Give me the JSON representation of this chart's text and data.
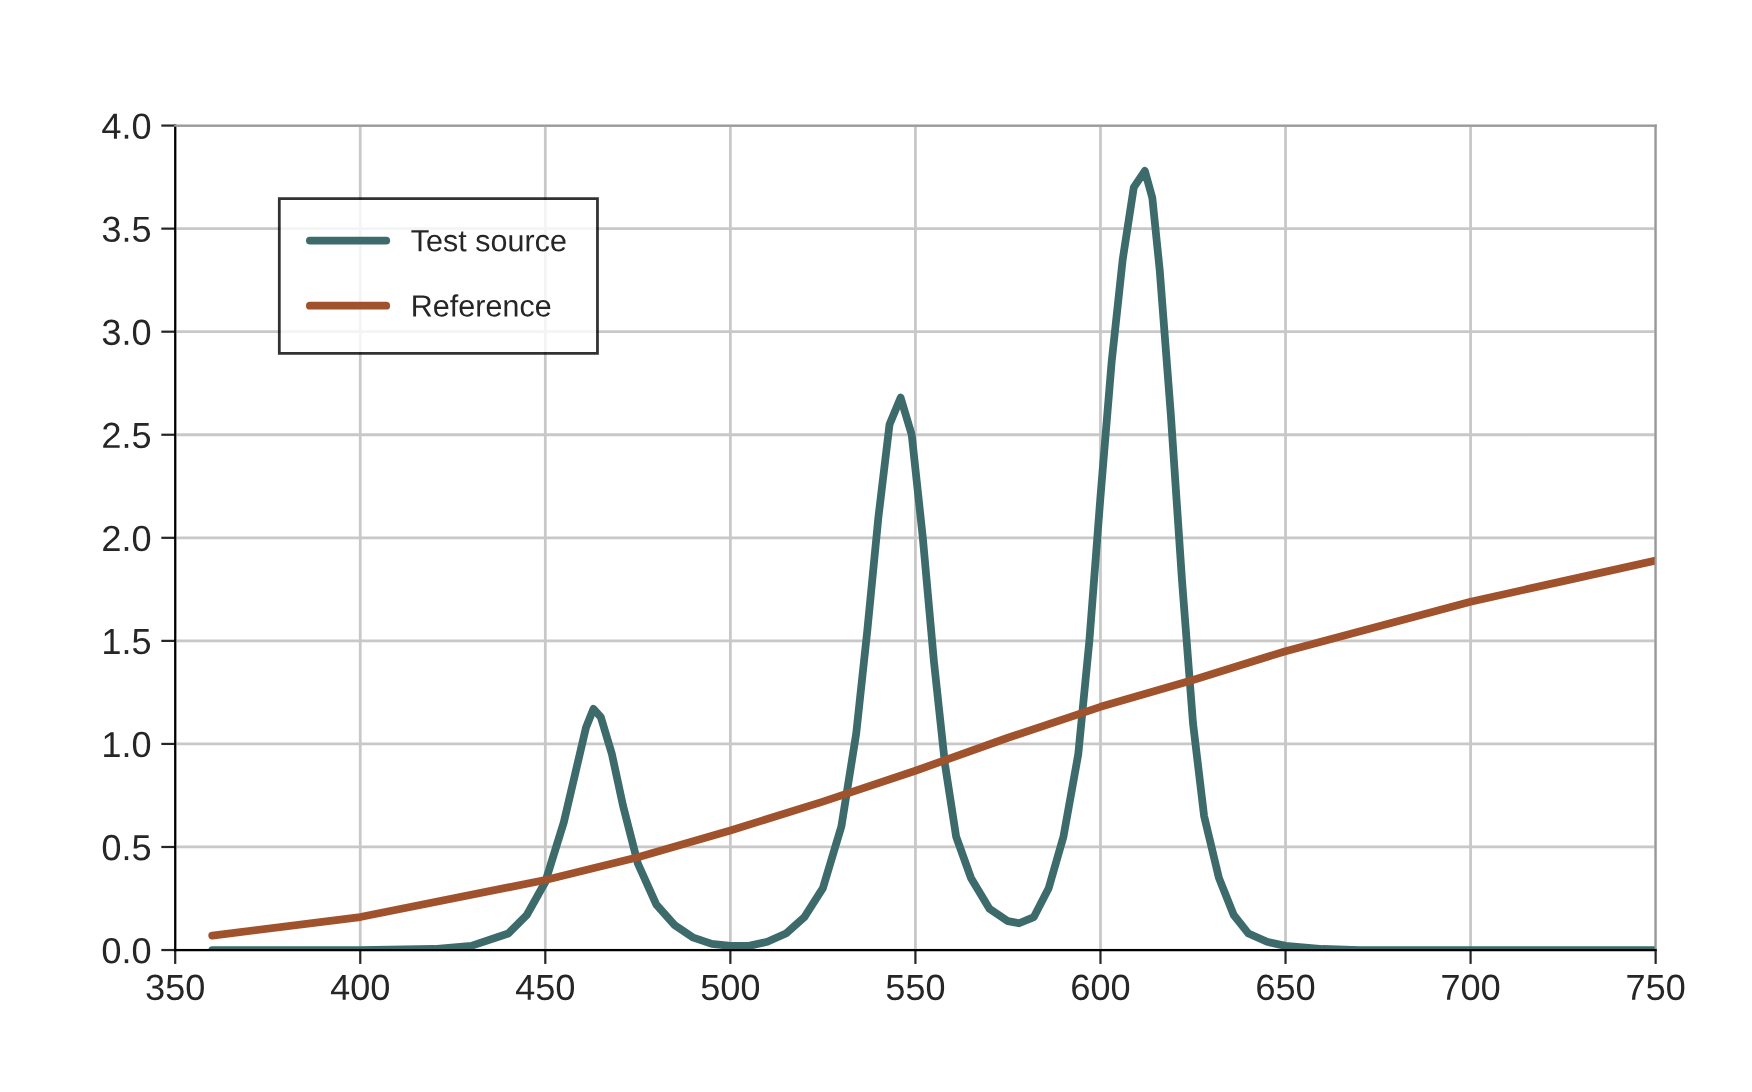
{
  "chart_data": {
    "type": "line",
    "xlim": [
      350,
      750
    ],
    "xticks": [
      350,
      400,
      450,
      500,
      550,
      600,
      650,
      700,
      750
    ],
    "ylim": [
      0,
      4.0
    ],
    "yticks": [
      {
        "value": 0,
        "label": "0.0"
      },
      {
        "value": 0.5,
        "label": "0.5"
      },
      {
        "value": 1.0,
        "label": "1.0"
      },
      {
        "value": 1.5,
        "label": "1.5"
      },
      {
        "value": 2.0,
        "label": "2.0"
      },
      {
        "value": 2.5,
        "label": "2.5"
      },
      {
        "value": 3.0,
        "label": "3.0"
      },
      {
        "value": 3.5,
        "label": "3.5"
      },
      {
        "value": 4.0,
        "label": "4.0"
      }
    ],
    "grid": true,
    "legend": "top left",
    "line_style": "solid",
    "series": [
      {
        "name": "Test source",
        "color": "#3d6b6b",
        "x": [
          360,
          400,
          420,
          430,
          440,
          445,
          450,
          455,
          458,
          461,
          463,
          465,
          468,
          471,
          475,
          480,
          485,
          490,
          495,
          500,
          505,
          510,
          515,
          520,
          525,
          530,
          534,
          537,
          540,
          543,
          546,
          549,
          552,
          555,
          558,
          561,
          565,
          570,
          575,
          578,
          582,
          586,
          590,
          594,
          597,
          600,
          603,
          606,
          609,
          612,
          614,
          616,
          619,
          622,
          625,
          628,
          632,
          636,
          640,
          645,
          650,
          660,
          670,
          750
        ],
        "values": [
          0,
          0,
          0.005,
          0.02,
          0.08,
          0.17,
          0.33,
          0.62,
          0.85,
          1.08,
          1.17,
          1.13,
          0.95,
          0.7,
          0.42,
          0.22,
          0.12,
          0.06,
          0.03,
          0.02,
          0.02,
          0.04,
          0.08,
          0.16,
          0.3,
          0.6,
          1.05,
          1.55,
          2.1,
          2.55,
          2.68,
          2.5,
          2.0,
          1.4,
          0.9,
          0.55,
          0.35,
          0.2,
          0.14,
          0.13,
          0.16,
          0.3,
          0.55,
          0.95,
          1.5,
          2.2,
          2.85,
          3.35,
          3.7,
          3.78,
          3.65,
          3.3,
          2.6,
          1.8,
          1.1,
          0.65,
          0.35,
          0.17,
          0.08,
          0.04,
          0.02,
          0.005,
          0,
          0
        ]
      },
      {
        "name": "Reference",
        "color": "#a0522d",
        "x": [
          360,
          400,
          450,
          475,
          500,
          525,
          550,
          575,
          600,
          625,
          650,
          675,
          700,
          725,
          750
        ],
        "values": [
          0.07,
          0.16,
          0.34,
          0.45,
          0.58,
          0.72,
          0.87,
          1.03,
          1.18,
          1.31,
          1.45,
          1.57,
          1.69,
          1.79,
          1.89
        ]
      }
    ]
  }
}
